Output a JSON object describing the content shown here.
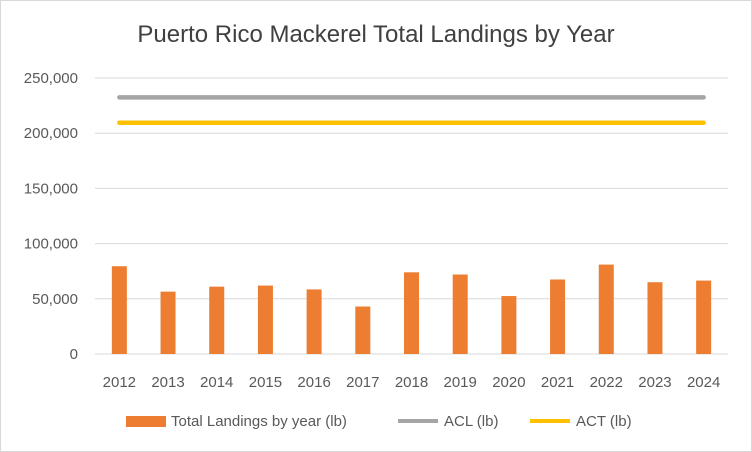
{
  "chart_data": {
    "type": "bar",
    "title": "Puerto Rico Mackerel Total Landings by Year",
    "categories": [
      "2012",
      "2013",
      "2014",
      "2015",
      "2016",
      "2017",
      "2018",
      "2019",
      "2020",
      "2021",
      "2022",
      "2023",
      "2024"
    ],
    "series": [
      {
        "name": "Total Landings by year (lb)",
        "kind": "bar",
        "color": "#ed7d31",
        "values": [
          79500,
          56500,
          61000,
          62000,
          58500,
          43000,
          74000,
          72000,
          52500,
          67500,
          81000,
          65000,
          66500
        ]
      },
      {
        "name": "ACL (lb)",
        "kind": "line",
        "color": "#a5a5a5",
        "values": [
          232500,
          232500,
          232500,
          232500,
          232500,
          232500,
          232500,
          232500,
          232500,
          232500,
          232500,
          232500,
          232500
        ]
      },
      {
        "name": "ACT (lb)",
        "kind": "line",
        "color": "#ffc000",
        "values": [
          209500,
          209500,
          209500,
          209500,
          209500,
          209500,
          209500,
          209500,
          209500,
          209500,
          209500,
          209500,
          209500
        ]
      }
    ],
    "yticks": [
      "0",
      "50,000",
      "100,000",
      "150,000",
      "200,000",
      "250,000"
    ],
    "ylim": [
      0,
      250000
    ],
    "xlabel": "",
    "ylabel": "",
    "grid": true,
    "legend": "bottom"
  }
}
